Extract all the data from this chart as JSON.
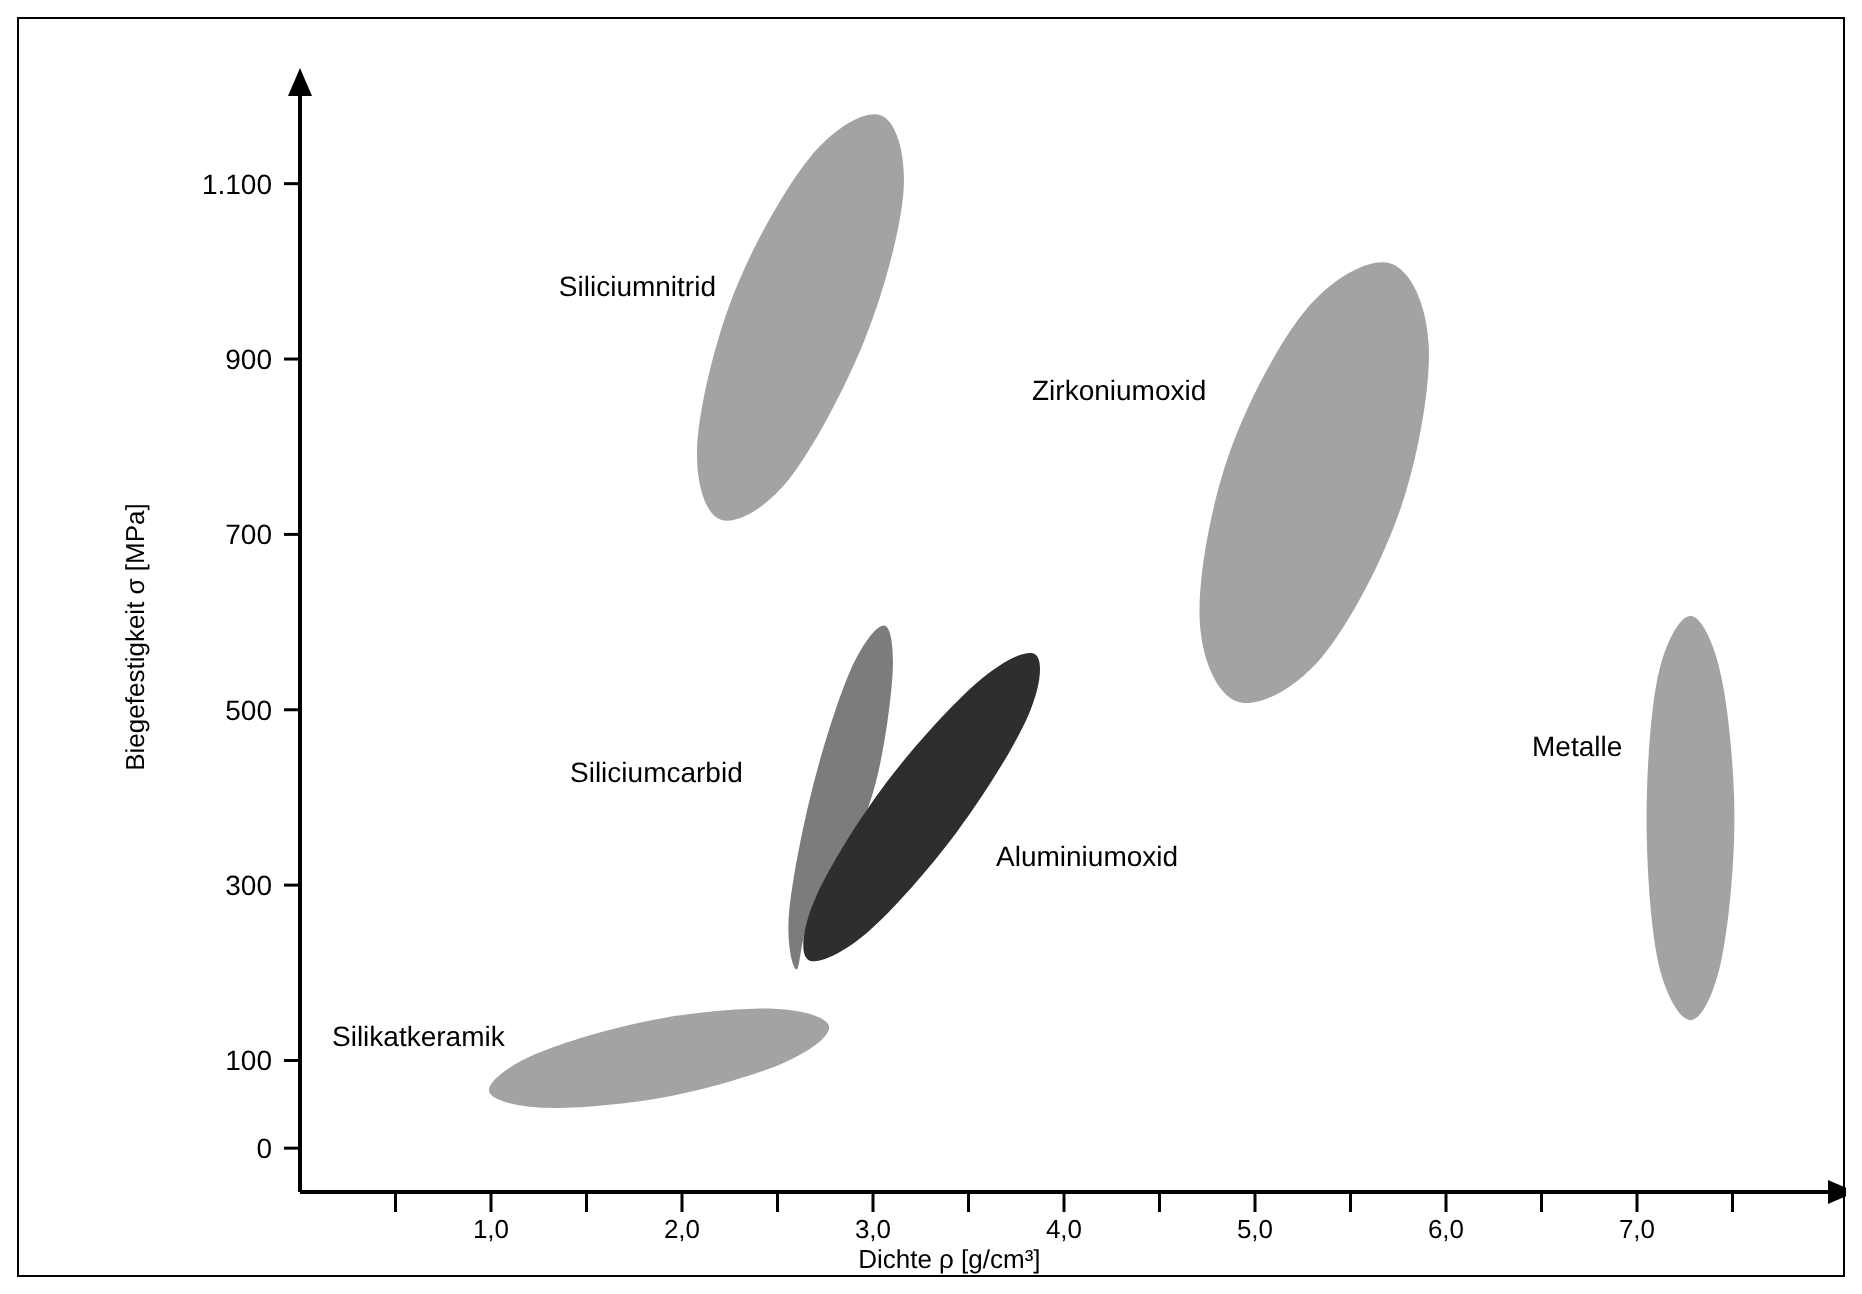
{
  "chart_data": {
    "type": "area",
    "xlabel": "Dichte ρ [g/cm³]",
    "ylabel": "Biegefestigkeit σ [MPa]",
    "xlim": [
      0,
      8
    ],
    "ylim": [
      -50,
      1200
    ],
    "xticks": [
      {
        "value": 0.5,
        "label": null
      },
      {
        "value": 1,
        "label": "1,0"
      },
      {
        "value": 1.5,
        "label": null
      },
      {
        "value": 2,
        "label": "2,0"
      },
      {
        "value": 2.5,
        "label": null
      },
      {
        "value": 3,
        "label": "3,0"
      },
      {
        "value": 3.5,
        "label": null
      },
      {
        "value": 4,
        "label": "4,0"
      },
      {
        "value": 4.5,
        "label": null
      },
      {
        "value": 5,
        "label": "5,0"
      },
      {
        "value": 5.5,
        "label": null
      },
      {
        "value": 6,
        "label": "6,0"
      },
      {
        "value": 6.5,
        "label": null
      },
      {
        "value": 7,
        "label": "7,0"
      },
      {
        "value": 7.5,
        "label": null
      }
    ],
    "yticks": [
      0,
      100,
      300,
      500,
      700,
      900,
      {
        "value": 1100,
        "label": "1.100"
      }
    ],
    "grid": false,
    "series": [
      {
        "name": "Siliciumnitrid",
        "color": "#a3a3a3",
        "x": [
          3.04,
          2.67,
          2.27,
          2.08,
          2.2,
          2.56,
          2.96,
          3.16
        ],
        "values": [
          1178,
          1130,
          974,
          803,
          717,
          763,
          924,
          1092
        ]
      },
      {
        "name": "Zirkoniumoxid",
        "color": "#a3a3a3",
        "x": [
          5.71,
          5.27,
          4.86,
          4.71,
          4.91,
          5.35,
          5.76,
          5.91
        ],
        "values": [
          1009,
          957,
          789,
          604,
          509,
          560,
          728,
          914
        ]
      },
      {
        "name": "Metalle",
        "color": "#a3a3a3",
        "x": [
          7.28,
          7.11,
          7.05,
          7.11,
          7.28,
          7.44,
          7.51,
          7.44
        ],
        "values": [
          607,
          539,
          376,
          213,
          146,
          213,
          376,
          539
        ]
      },
      {
        "name": "Silikatkeramik",
        "color": "#a3a3a3",
        "x": [
          2.77,
          2.48,
          1.84,
          1.23,
          0.99,
          1.29,
          1.93,
          2.54
        ],
        "values": [
          139,
          159,
          146,
          107,
          65,
          46,
          59,
          98
        ]
      },
      {
        "name": "Siliciumcarbid",
        "color": "#7c7c7c",
        "x": [
          3.06,
          2.88,
          2.68,
          2.56,
          2.6,
          2.68,
          2.98,
          3.1
        ],
        "values": [
          596,
          544,
          408,
          267,
          204,
          270,
          392,
          533
        ]
      },
      {
        "name": "Aluminiumoxid",
        "color": "#2e2e2e",
        "x": [
          3.85,
          3.55,
          3.07,
          2.7,
          2.66,
          2.97,
          3.44,
          3.81
        ],
        "values": [
          563,
          532,
          417,
          286,
          215,
          246,
          361,
          492
        ]
      }
    ]
  }
}
